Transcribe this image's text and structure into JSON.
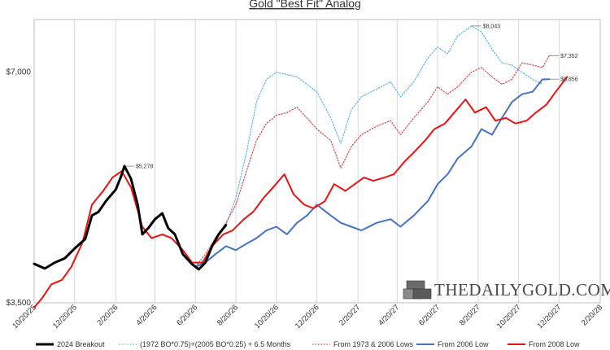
{
  "chart_data": {
    "type": "line",
    "title": "Gold \"Best Fit\" Analog",
    "xlabel": "",
    "ylabel": "",
    "y_scale": "log",
    "ylim": [
      3500,
      8200
    ],
    "y_ticks": [
      {
        "value": 3500,
        "label": "$3,500"
      },
      {
        "value": 7000,
        "label": "$7,000"
      }
    ],
    "x_range": [
      "2025-10-20",
      "2028-02-20"
    ],
    "x_ticks": [
      "10/20/25",
      "12/20/25",
      "2/20/26",
      "4/20/26",
      "6/20/26",
      "8/20/26",
      "10/20/26",
      "12/20/26",
      "2/20/27",
      "4/20/27",
      "6/20/27",
      "8/20/27",
      "10/20/27",
      "12/20/27",
      "2/20/28"
    ],
    "grid": {
      "vertical": true,
      "horizontal": false
    },
    "legend_position": "bottom",
    "series": [
      {
        "name": "2024 Breakout",
        "color": "#000000",
        "style": "solid",
        "points": [
          [
            "2025-10-20",
            3935
          ],
          [
            "2025-11-05",
            3880
          ],
          [
            "2025-11-20",
            3950
          ],
          [
            "2025-12-05",
            4000
          ],
          [
            "2025-12-20",
            4120
          ],
          [
            "2026-01-05",
            4240
          ],
          [
            "2026-01-15",
            4550
          ],
          [
            "2026-01-25",
            4600
          ],
          [
            "2026-02-05",
            4750
          ],
          [
            "2026-02-20",
            4920
          ],
          [
            "2026-02-28",
            5120
          ],
          [
            "2026-03-05",
            5278
          ],
          [
            "2026-03-15",
            5080
          ],
          [
            "2026-03-25",
            4700
          ],
          [
            "2026-04-01",
            4300
          ],
          [
            "2026-04-10",
            4380
          ],
          [
            "2026-04-20",
            4500
          ],
          [
            "2026-05-01",
            4580
          ],
          [
            "2026-05-10",
            4380
          ],
          [
            "2026-05-20",
            4300
          ],
          [
            "2026-06-01",
            4050
          ],
          [
            "2026-06-15",
            3930
          ],
          [
            "2026-06-25",
            3870
          ],
          [
            "2026-07-05",
            3950
          ],
          [
            "2026-07-15",
            4150
          ],
          [
            "2026-07-25",
            4300
          ],
          [
            "2026-08-05",
            4420
          ]
        ]
      },
      {
        "name": "(1972 BO*0.75)+(2005 BO*0.25) + 6.5 Months",
        "color": "#5bb8e6",
        "style": "dotted",
        "points": [
          [
            "2026-06-20",
            3900
          ],
          [
            "2026-07-05",
            4000
          ],
          [
            "2026-07-20",
            4250
          ],
          [
            "2026-08-05",
            4420
          ],
          [
            "2026-08-20",
            4800
          ],
          [
            "2026-09-05",
            5500
          ],
          [
            "2026-09-20",
            6400
          ],
          [
            "2026-10-05",
            6850
          ],
          [
            "2026-10-20",
            7000
          ],
          [
            "2026-11-05",
            6950
          ],
          [
            "2026-11-20",
            6900
          ],
          [
            "2026-12-05",
            6750
          ],
          [
            "2026-12-20",
            6600
          ],
          [
            "2027-01-10",
            6100
          ],
          [
            "2027-01-25",
            5650
          ],
          [
            "2027-02-10",
            6250
          ],
          [
            "2027-02-25",
            6500
          ],
          [
            "2027-03-20",
            6650
          ],
          [
            "2027-04-10",
            6800
          ],
          [
            "2027-04-25",
            6500
          ],
          [
            "2027-05-15",
            6800
          ],
          [
            "2027-06-05",
            7300
          ],
          [
            "2027-06-20",
            7550
          ],
          [
            "2027-07-05",
            7400
          ],
          [
            "2027-07-20",
            7800
          ],
          [
            "2027-08-10",
            8043
          ],
          [
            "2027-08-25",
            7900
          ],
          [
            "2027-09-10",
            7500
          ],
          [
            "2027-09-25",
            7200
          ],
          [
            "2027-10-10",
            7150
          ],
          [
            "2027-10-25",
            7000
          ],
          [
            "2027-11-10",
            6850
          ],
          [
            "2027-11-25",
            6750
          ]
        ]
      },
      {
        "name": "From 1973 & 2006 Lows",
        "color": "#d84d4d",
        "style": "dotted",
        "points": [
          [
            "2026-06-20",
            3900
          ],
          [
            "2026-07-05",
            4050
          ],
          [
            "2026-07-20",
            4250
          ],
          [
            "2026-08-05",
            4450
          ],
          [
            "2026-08-20",
            4700
          ],
          [
            "2026-09-05",
            5200
          ],
          [
            "2026-09-20",
            5700
          ],
          [
            "2026-10-05",
            6000
          ],
          [
            "2026-10-20",
            6150
          ],
          [
            "2026-11-05",
            6200
          ],
          [
            "2026-11-20",
            6300
          ],
          [
            "2026-12-05",
            6100
          ],
          [
            "2026-12-20",
            5900
          ],
          [
            "2027-01-10",
            5700
          ],
          [
            "2027-01-25",
            5250
          ],
          [
            "2027-02-10",
            5600
          ],
          [
            "2027-02-25",
            5800
          ],
          [
            "2027-03-20",
            5950
          ],
          [
            "2027-04-10",
            6050
          ],
          [
            "2027-04-25",
            5800
          ],
          [
            "2027-05-15",
            6100
          ],
          [
            "2027-06-05",
            6400
          ],
          [
            "2027-06-20",
            6700
          ],
          [
            "2027-07-05",
            6550
          ],
          [
            "2027-07-20",
            6700
          ],
          [
            "2027-08-10",
            7000
          ],
          [
            "2027-08-25",
            7100
          ],
          [
            "2027-09-10",
            6900
          ],
          [
            "2027-09-25",
            6750
          ],
          [
            "2027-10-10",
            6850
          ],
          [
            "2027-10-25",
            7200
          ],
          [
            "2027-11-10",
            7150
          ],
          [
            "2027-11-25",
            7100
          ],
          [
            "2027-12-05",
            7352
          ]
        ]
      },
      {
        "name": "From 2006 Low",
        "color": "#4472c4",
        "style": "solid",
        "points": [
          [
            "2026-06-20",
            3900
          ],
          [
            "2026-07-05",
            3950
          ],
          [
            "2026-07-20",
            4050
          ],
          [
            "2026-08-05",
            4150
          ],
          [
            "2026-08-20",
            4100
          ],
          [
            "2026-09-05",
            4180
          ],
          [
            "2026-09-20",
            4250
          ],
          [
            "2026-10-05",
            4350
          ],
          [
            "2026-10-20",
            4400
          ],
          [
            "2026-11-05",
            4300
          ],
          [
            "2026-11-20",
            4450
          ],
          [
            "2026-12-05",
            4550
          ],
          [
            "2026-12-20",
            4700
          ],
          [
            "2027-01-10",
            4550
          ],
          [
            "2027-01-25",
            4450
          ],
          [
            "2027-02-10",
            4400
          ],
          [
            "2027-02-25",
            4350
          ],
          [
            "2027-03-20",
            4450
          ],
          [
            "2027-04-10",
            4500
          ],
          [
            "2027-04-25",
            4400
          ],
          [
            "2027-05-15",
            4550
          ],
          [
            "2027-06-05",
            4750
          ],
          [
            "2027-06-20",
            5000
          ],
          [
            "2027-07-05",
            5150
          ],
          [
            "2027-07-20",
            5400
          ],
          [
            "2027-08-10",
            5600
          ],
          [
            "2027-08-25",
            5900
          ],
          [
            "2027-09-10",
            5800
          ],
          [
            "2027-09-25",
            6100
          ],
          [
            "2027-10-10",
            6400
          ],
          [
            "2027-10-25",
            6550
          ],
          [
            "2027-11-10",
            6600
          ],
          [
            "2027-11-25",
            6850
          ],
          [
            "2027-12-05",
            6856
          ]
        ]
      },
      {
        "name": "From 2008 Low",
        "color": "#ee1111",
        "style": "solid",
        "points": [
          [
            "2025-10-20",
            3450
          ],
          [
            "2025-11-01",
            3550
          ],
          [
            "2025-11-15",
            3700
          ],
          [
            "2025-12-01",
            3750
          ],
          [
            "2025-12-15",
            3900
          ],
          [
            "2026-01-01",
            4200
          ],
          [
            "2026-01-15",
            4700
          ],
          [
            "2026-02-01",
            4900
          ],
          [
            "2026-02-15",
            5100
          ],
          [
            "2026-03-01",
            5200
          ],
          [
            "2026-03-15",
            4950
          ],
          [
            "2026-04-01",
            4400
          ],
          [
            "2026-04-15",
            4250
          ],
          [
            "2026-05-01",
            4300
          ],
          [
            "2026-05-15",
            4250
          ],
          [
            "2026-06-01",
            4100
          ],
          [
            "2026-06-15",
            3950
          ],
          [
            "2026-07-01",
            3950
          ],
          [
            "2026-07-15",
            4150
          ],
          [
            "2026-08-01",
            4300
          ],
          [
            "2026-08-15",
            4350
          ],
          [
            "2026-09-01",
            4500
          ],
          [
            "2026-09-15",
            4600
          ],
          [
            "2026-10-01",
            4800
          ],
          [
            "2026-10-15",
            4950
          ],
          [
            "2026-11-01",
            5150
          ],
          [
            "2026-11-15",
            4850
          ],
          [
            "2026-12-01",
            4700
          ],
          [
            "2026-12-15",
            4650
          ],
          [
            "2027-01-01",
            4750
          ],
          [
            "2027-01-15",
            5000
          ],
          [
            "2027-02-01",
            4900
          ],
          [
            "2027-02-15",
            5000
          ],
          [
            "2027-03-01",
            5100
          ],
          [
            "2027-03-15",
            5050
          ],
          [
            "2027-04-01",
            5100
          ],
          [
            "2027-04-15",
            5150
          ],
          [
            "2027-05-01",
            5350
          ],
          [
            "2027-05-15",
            5500
          ],
          [
            "2027-06-01",
            5700
          ],
          [
            "2027-06-15",
            5900
          ],
          [
            "2027-07-01",
            6000
          ],
          [
            "2027-07-15",
            6200
          ],
          [
            "2027-08-01",
            6450
          ],
          [
            "2027-08-15",
            6200
          ],
          [
            "2027-09-01",
            6300
          ],
          [
            "2027-09-15",
            6050
          ],
          [
            "2027-10-01",
            6100
          ],
          [
            "2027-10-15",
            6000
          ],
          [
            "2027-11-01",
            6050
          ],
          [
            "2027-11-15",
            6200
          ],
          [
            "2027-12-01",
            6350
          ],
          [
            "2027-12-15",
            6600
          ],
          [
            "2028-01-01",
            6900
          ]
        ]
      }
    ],
    "annotations": [
      {
        "series": "2024 Breakout",
        "date": "2026-03-05",
        "value": 5278,
        "label": "$5,278"
      },
      {
        "series": "(1972 BO*0.75)+(2005 BO*0.25) + 6.5 Months",
        "date": "2027-08-10",
        "value": 8043,
        "label": "$8,043"
      },
      {
        "series": "From 1973 & 2006 Lows",
        "date": "2027-12-05",
        "value": 7352,
        "label": "$7,352"
      },
      {
        "series": "From 2006 Low",
        "date": "2027-12-05",
        "value": 6856,
        "label": "$6,856"
      }
    ]
  },
  "watermark": {
    "text": "THEDAILYGOLD.COM",
    "icon": "gold-bars-icon"
  }
}
